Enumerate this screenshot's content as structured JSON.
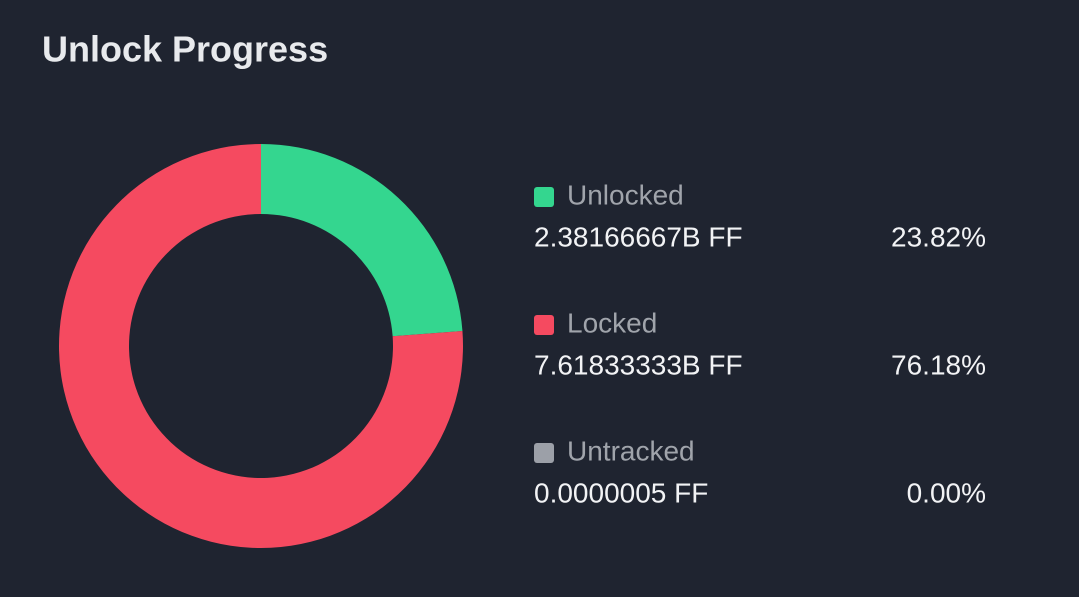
{
  "chart_data": {
    "type": "pie",
    "donut": true,
    "title": "Unlock Progress",
    "categories": [
      "Unlocked",
      "Locked",
      "Untracked"
    ],
    "values": [
      23.82,
      76.18,
      0.0
    ],
    "value_labels": [
      "23.82%",
      "76.18%",
      "0.00%"
    ],
    "amounts": [
      "2.38166667B FF",
      "7.61833333B FF",
      "0.0000005 FF"
    ],
    "colors": [
      "#34d68f",
      "#f54a60",
      "#9ca0a8"
    ]
  }
}
